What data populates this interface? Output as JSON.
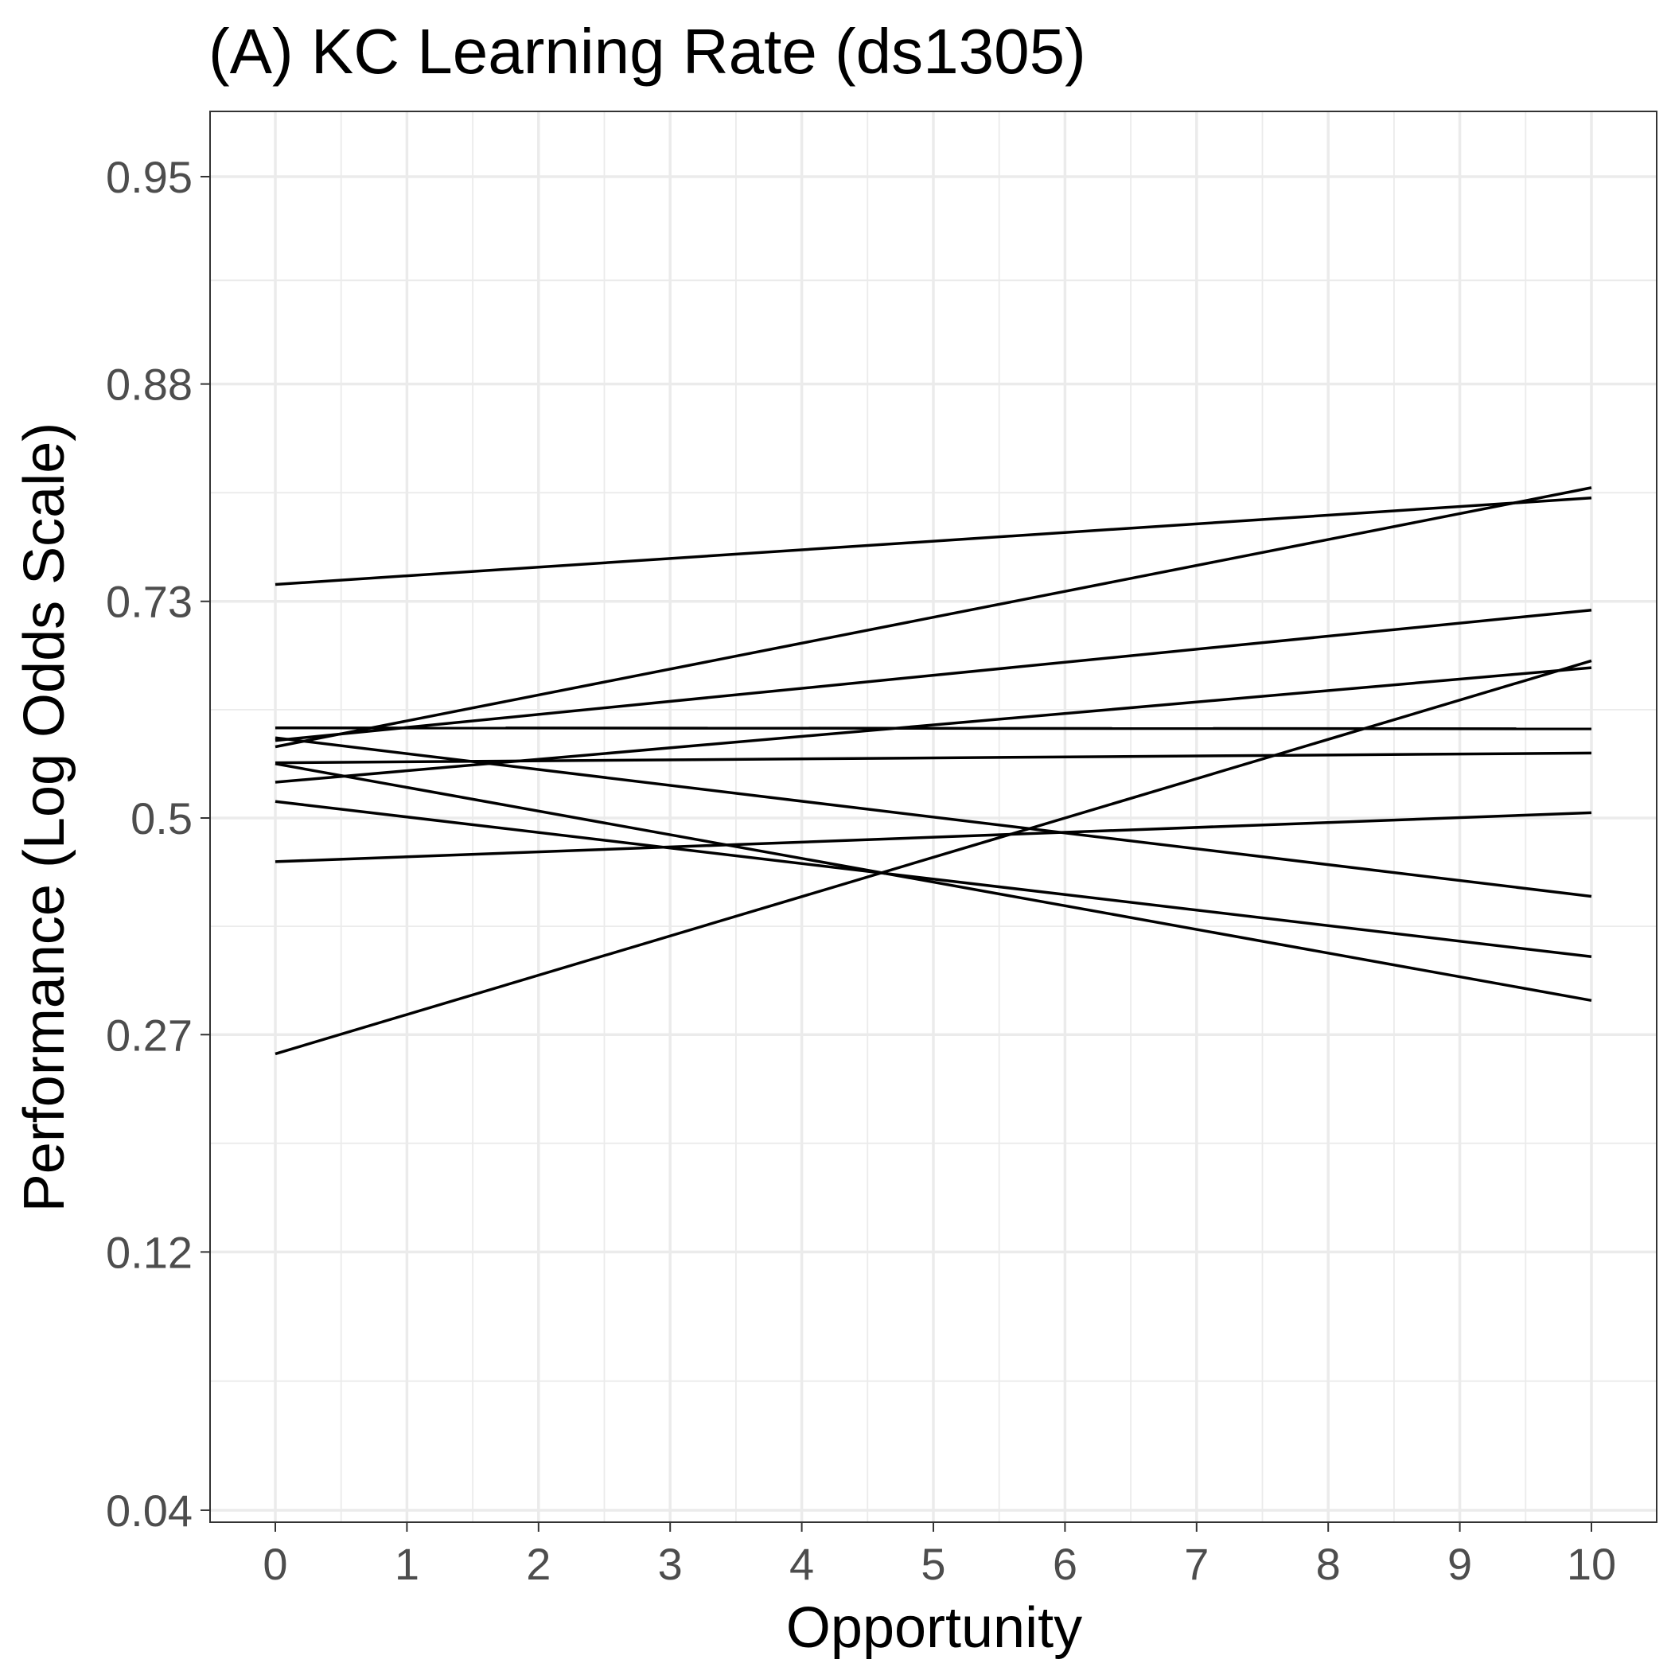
{
  "chart_data": {
    "type": "line",
    "title": "(A) KC Learning Rate (ds1305)",
    "xlabel": "Opportunity",
    "ylabel": "Performance (Log Odds Scale)",
    "x_ticks": [
      "0",
      "1",
      "2",
      "3",
      "4",
      "5",
      "6",
      "7",
      "8",
      "9",
      "10"
    ],
    "y_ticks": [
      "0.04",
      "0.12",
      "0.27",
      "0.5",
      "0.73",
      "0.88",
      "0.95"
    ],
    "y_scale": "logit",
    "xlim": [
      -0.5,
      10.5
    ],
    "ylim": [
      0.024,
      0.976
    ],
    "grid": true,
    "legend": "none",
    "line_color": "#000000",
    "series": [
      {
        "x": [
          0,
          10
        ],
        "y": [
          0.745,
          0.813
        ]
      },
      {
        "x": [
          0,
          10
        ],
        "y": [
          0.581,
          0.82
        ]
      },
      {
        "x": [
          0,
          10
        ],
        "y": [
          0.588,
          0.722
        ]
      },
      {
        "x": [
          0,
          10
        ],
        "y": [
          0.602,
          0.601
        ]
      },
      {
        "x": [
          0,
          10
        ],
        "y": [
          0.591,
          0.411
        ]
      },
      {
        "x": [
          0,
          10
        ],
        "y": [
          0.563,
          0.574
        ]
      },
      {
        "x": [
          0,
          10
        ],
        "y": [
          0.541,
          0.666
        ]
      },
      {
        "x": [
          0,
          10
        ],
        "y": [
          0.562,
          0.302
        ]
      },
      {
        "x": [
          0,
          10
        ],
        "y": [
          0.519,
          0.346
        ]
      },
      {
        "x": [
          0,
          10
        ],
        "y": [
          0.45,
          0.506
        ]
      },
      {
        "x": [
          0,
          10
        ],
        "y": [
          0.253,
          0.673
        ]
      }
    ]
  }
}
